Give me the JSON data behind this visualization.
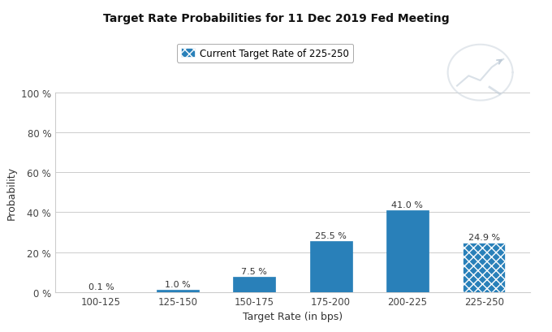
{
  "title": "Target Rate Probabilities for 11 Dec 2019 Fed Meeting",
  "legend_label": "Current Target Rate of 225-250",
  "xlabel": "Target Rate (in bps)",
  "ylabel": "Probability",
  "categories": [
    "100-125",
    "125-150",
    "150-175",
    "175-200",
    "200-225",
    "225-250"
  ],
  "values": [
    0.1,
    1.0,
    7.5,
    25.5,
    41.0,
    24.9
  ],
  "bar_color": "#2980b9",
  "hatch_bar_index": 5,
  "ylim": [
    0,
    100
  ],
  "yticks": [
    0,
    20,
    40,
    60,
    80,
    100
  ],
  "ytick_labels": [
    "0 %",
    "20 %",
    "40 %",
    "60 %",
    "80 %",
    "100 %"
  ],
  "background_color": "#ffffff",
  "grid_color": "#cccccc",
  "title_fontsize": 10,
  "label_fontsize": 9,
  "tick_fontsize": 8.5,
  "value_label_fontsize": 8
}
